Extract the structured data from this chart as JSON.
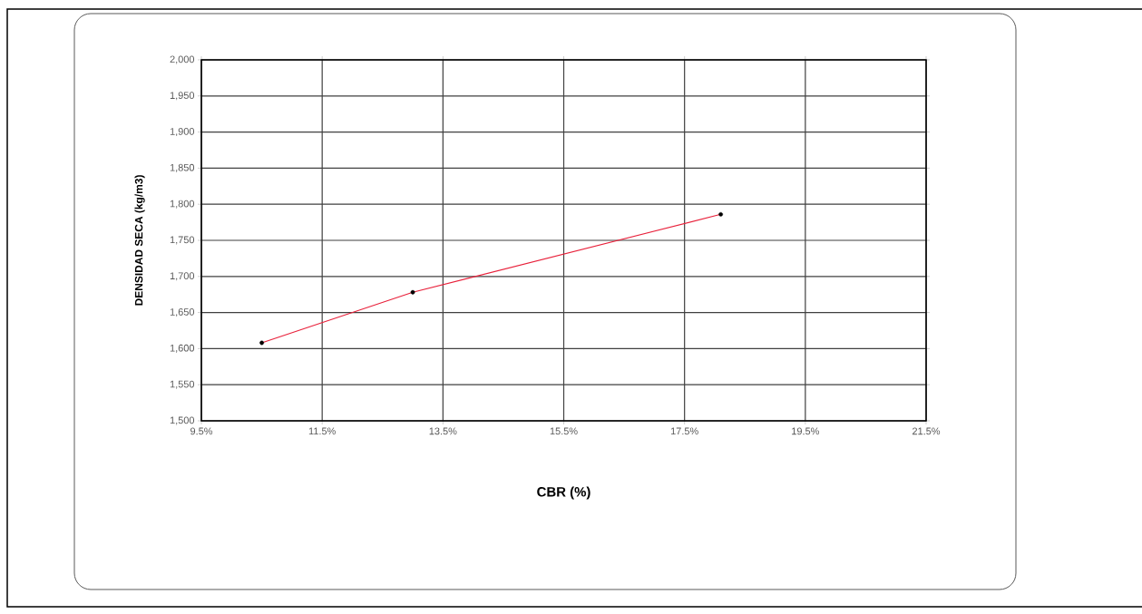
{
  "chart_data": {
    "type": "line",
    "xlabel": "CBR (%)",
    "ylabel": "DENSIDAD SECA (kg/m3)",
    "x": [
      10.5,
      13.0,
      18.1
    ],
    "series": [
      {
        "color": "#e8203a",
        "values": [
          1608,
          1678,
          1786
        ],
        "marker": "none"
      },
      {
        "type": "scatter",
        "color": "#000000",
        "values": [
          1608,
          1678,
          1786
        ],
        "marker": "circle"
      }
    ],
    "xlim": [
      9.5,
      21.5
    ],
    "ylim": [
      1500,
      2000
    ],
    "xticks": [
      {
        "value": 9.5,
        "label": "9.5%"
      },
      {
        "value": 11.5,
        "label": "11.5%"
      },
      {
        "value": 13.5,
        "label": "13.5%"
      },
      {
        "value": 15.5,
        "label": "15.5%"
      },
      {
        "value": 17.5,
        "label": "17.5%"
      },
      {
        "value": 19.5,
        "label": "19.5%"
      },
      {
        "value": 21.5,
        "label": "21.5%"
      }
    ],
    "yticks": [
      {
        "value": 1500,
        "label": "1,500"
      },
      {
        "value": 1550,
        "label": "1,550"
      },
      {
        "value": 1600,
        "label": "1,600"
      },
      {
        "value": 1650,
        "label": "1,650"
      },
      {
        "value": 1700,
        "label": "1,700"
      },
      {
        "value": 1750,
        "label": "1,750"
      },
      {
        "value": 1800,
        "label": "1,800"
      },
      {
        "value": 1850,
        "label": "1,850"
      },
      {
        "value": 1900,
        "label": "1,900"
      },
      {
        "value": 1950,
        "label": "1,950"
      },
      {
        "value": 2000,
        "label": "2,000"
      }
    ],
    "grid": true
  }
}
